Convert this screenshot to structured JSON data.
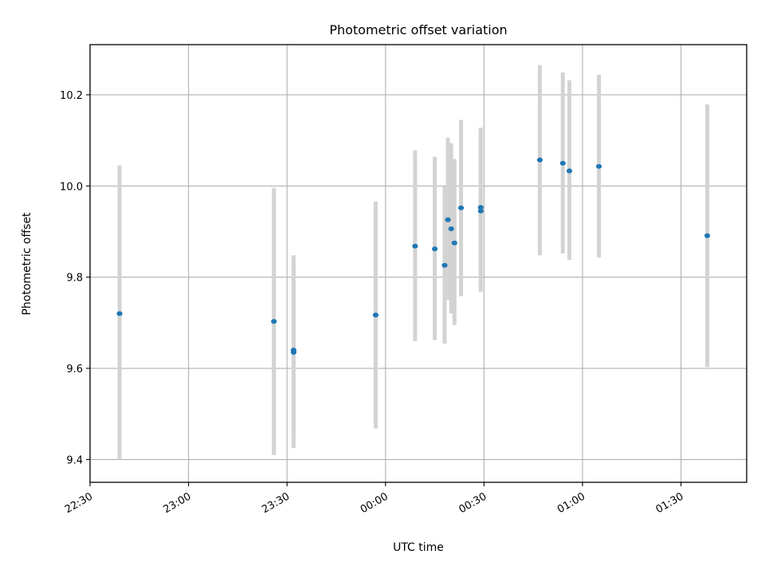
{
  "chart_data": {
    "type": "scatter",
    "title": "Photometric offset variation",
    "xlabel": "UTC time",
    "ylabel": "Photometric offset",
    "xlim": [
      "22:30",
      "01:50"
    ],
    "ylim": [
      9.35,
      10.31
    ],
    "grid": true,
    "x_ticks": [
      "22:30",
      "23:00",
      "23:30",
      "00:00",
      "00:30",
      "01:00",
      "01:30"
    ],
    "y_ticks": [
      "9.4",
      "9.6",
      "9.8",
      "10.0",
      "10.2"
    ],
    "colors": {
      "point": "#1f77b4",
      "errorbar": "#d3d3d3",
      "grid": "#b0b0b0"
    },
    "points": [
      {
        "x": "22:39",
        "y": 9.72,
        "ylow": 9.4,
        "yhigh": 10.045
      },
      {
        "x": "23:26",
        "y": 9.703,
        "ylow": 9.41,
        "yhigh": 9.995
      },
      {
        "x": "23:32",
        "y": 9.64,
        "ylow": 9.455,
        "yhigh": 9.83
      },
      {
        "x": "23:32",
        "y": 9.635,
        "ylow": 9.425,
        "yhigh": 9.848
      },
      {
        "x": "23:57",
        "y": 9.717,
        "ylow": 9.468,
        "yhigh": 9.966
      },
      {
        "x": "00:09",
        "y": 9.868,
        "ylow": 9.66,
        "yhigh": 10.078
      },
      {
        "x": "00:15",
        "y": 9.862,
        "ylow": 9.662,
        "yhigh": 10.064
      },
      {
        "x": "00:18",
        "y": 9.826,
        "ylow": 9.654,
        "yhigh": 9.999
      },
      {
        "x": "00:19",
        "y": 9.926,
        "ylow": 9.75,
        "yhigh": 10.106
      },
      {
        "x": "00:20",
        "y": 9.906,
        "ylow": 9.72,
        "yhigh": 10.094
      },
      {
        "x": "00:21",
        "y": 9.875,
        "ylow": 9.695,
        "yhigh": 10.059
      },
      {
        "x": "00:23",
        "y": 9.952,
        "ylow": 9.758,
        "yhigh": 10.145
      },
      {
        "x": "00:29",
        "y": 9.953,
        "ylow": 9.778,
        "yhigh": 10.128
      },
      {
        "x": "00:29",
        "y": 9.945,
        "ylow": 9.768,
        "yhigh": 10.123
      },
      {
        "x": "00:47",
        "y": 10.057,
        "ylow": 9.848,
        "yhigh": 10.265
      },
      {
        "x": "00:54",
        "y": 10.05,
        "ylow": 9.852,
        "yhigh": 10.249
      },
      {
        "x": "00:56",
        "y": 10.033,
        "ylow": 9.838,
        "yhigh": 10.232
      },
      {
        "x": "01:05",
        "y": 10.043,
        "ylow": 9.843,
        "yhigh": 10.244
      },
      {
        "x": "01:38",
        "y": 9.891,
        "ylow": 9.603,
        "yhigh": 10.179
      }
    ]
  }
}
